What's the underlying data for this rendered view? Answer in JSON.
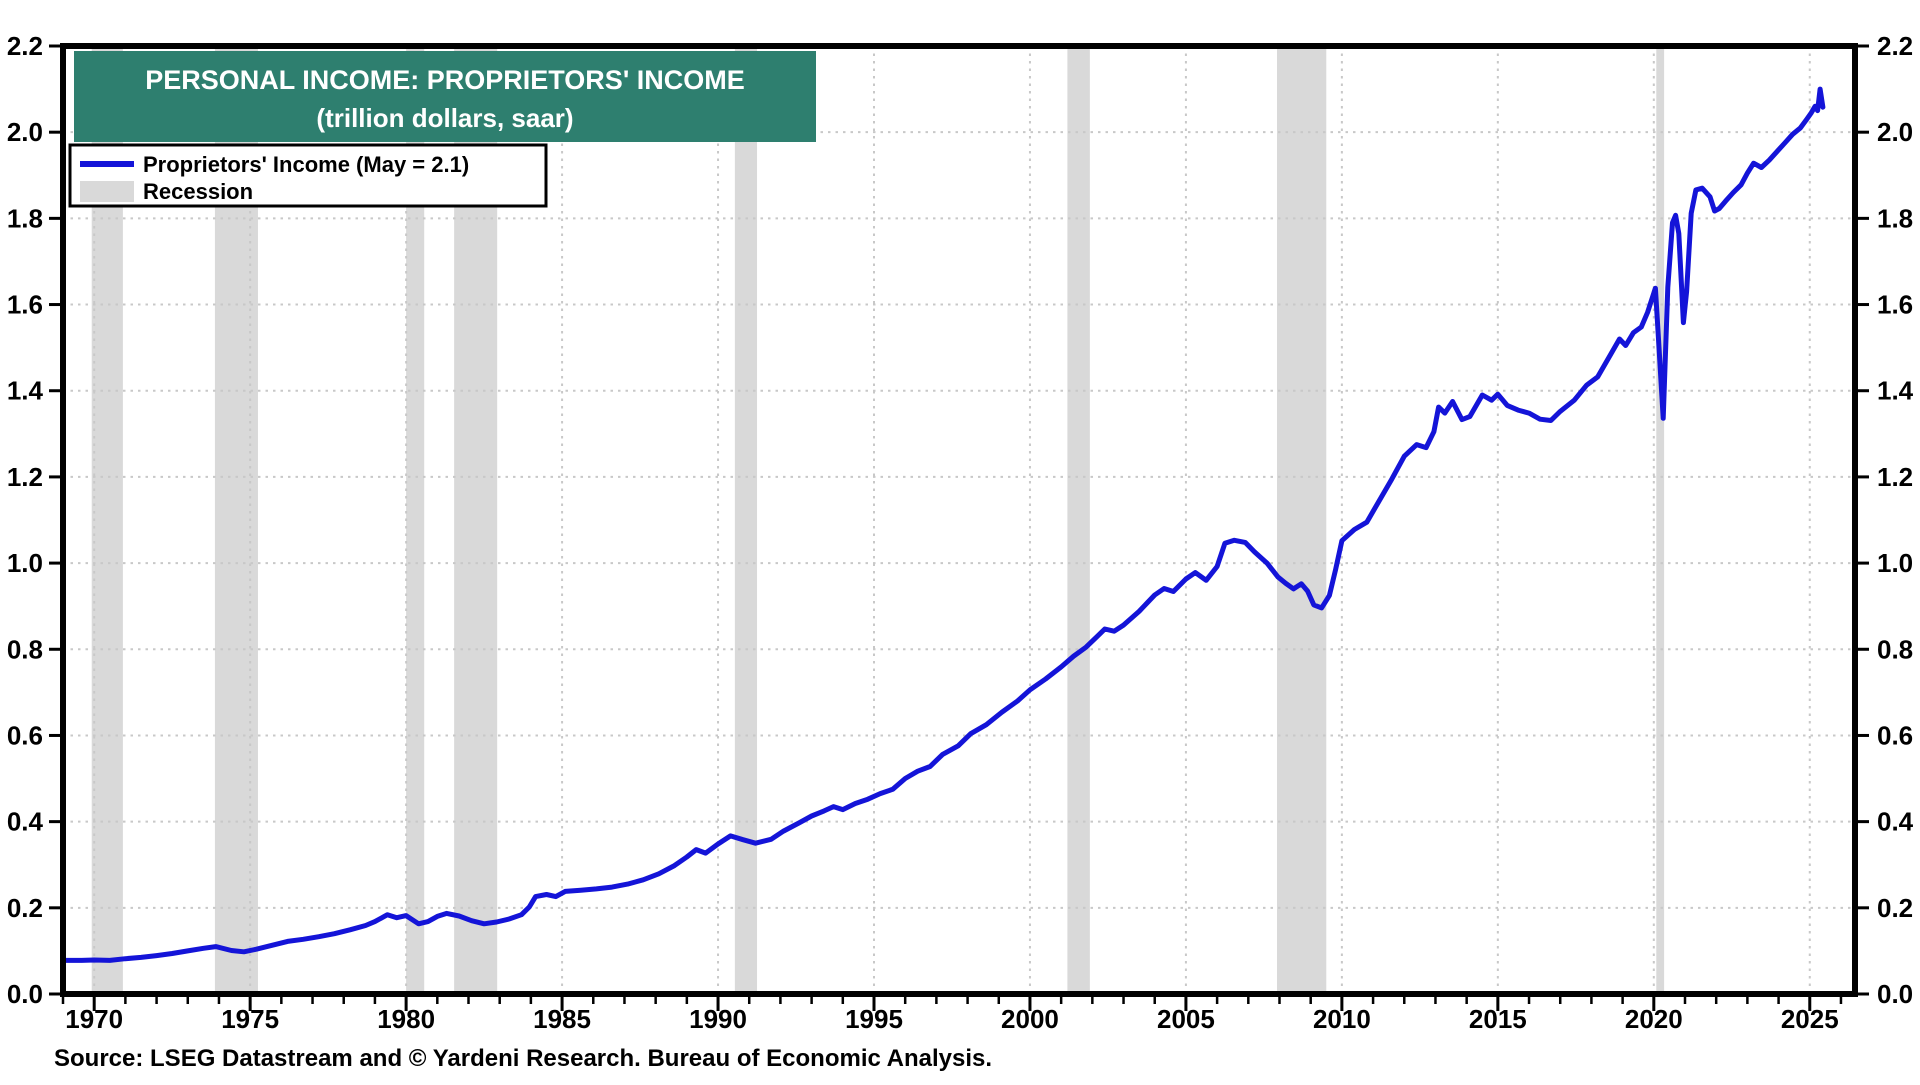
{
  "title": {
    "line1": "PERSONAL INCOME: PROPRIETORS' INCOME",
    "line2": "(trillion dollars, saar)"
  },
  "legend": {
    "series_label": "Proprietors' Income (May = 2.1)",
    "recession_label": "Recession"
  },
  "source_note": "Source: LSEG Datastream and © Yardeni Research. Bureau of Economic Analysis.",
  "colors": {
    "line": "#1414d8",
    "title_bg": "#2e7f6f",
    "title_text": "#ffffff",
    "recession_band": "#d9d9d9",
    "gridline": "#c8c8c8",
    "axis": "#000000",
    "background": "#ffffff"
  },
  "chart_data": {
    "type": "line",
    "title": "PERSONAL INCOME: PROPRIETORS' INCOME",
    "subtitle": "(trillion dollars, saar)",
    "ylabel": "trillion dollars, saar",
    "xlim": [
      1969,
      2026.45
    ],
    "ylim": [
      0,
      2.2
    ],
    "x_ticks_labeled": [
      1970,
      1975,
      1980,
      1985,
      1990,
      1995,
      2000,
      2005,
      2010,
      2015,
      2020,
      2025
    ],
    "x_minor_tick_step": 1,
    "y_ticks": [
      0.0,
      0.2,
      0.4,
      0.6,
      0.8,
      1.0,
      1.2,
      1.4,
      1.6,
      1.8,
      2.0,
      2.2
    ],
    "grid": true,
    "legend_position": "top-left",
    "last_point_label": "May = 2.1",
    "recession_bands": [
      [
        1969.92,
        1970.92
      ],
      [
        1973.87,
        1975.25
      ],
      [
        1980.0,
        1980.58
      ],
      [
        1981.54,
        1982.92
      ],
      [
        1990.54,
        1991.25
      ],
      [
        2001.2,
        2001.92
      ],
      [
        2007.92,
        2009.5
      ],
      [
        2020.08,
        2020.33
      ]
    ],
    "series": [
      {
        "name": "Proprietors' Income (May = 2.1)",
        "color": "#1414d8",
        "points": [
          [
            1969.0,
            0.078
          ],
          [
            1969.6,
            0.078
          ],
          [
            1970.0,
            0.079
          ],
          [
            1970.5,
            0.078
          ],
          [
            1971.0,
            0.082
          ],
          [
            1971.5,
            0.085
          ],
          [
            1972.0,
            0.089
          ],
          [
            1972.5,
            0.094
          ],
          [
            1973.0,
            0.1
          ],
          [
            1973.5,
            0.106
          ],
          [
            1973.9,
            0.11
          ],
          [
            1974.4,
            0.101
          ],
          [
            1974.8,
            0.098
          ],
          [
            1975.2,
            0.104
          ],
          [
            1975.7,
            0.113
          ],
          [
            1976.2,
            0.122
          ],
          [
            1976.7,
            0.127
          ],
          [
            1977.2,
            0.133
          ],
          [
            1977.7,
            0.14
          ],
          [
            1978.2,
            0.149
          ],
          [
            1978.7,
            0.159
          ],
          [
            1979.0,
            0.168
          ],
          [
            1979.4,
            0.184
          ],
          [
            1979.7,
            0.177
          ],
          [
            1980.0,
            0.182
          ],
          [
            1980.4,
            0.163
          ],
          [
            1980.7,
            0.168
          ],
          [
            1981.0,
            0.18
          ],
          [
            1981.3,
            0.187
          ],
          [
            1981.7,
            0.181
          ],
          [
            1982.1,
            0.17
          ],
          [
            1982.5,
            0.163
          ],
          [
            1982.9,
            0.167
          ],
          [
            1983.3,
            0.174
          ],
          [
            1983.7,
            0.184
          ],
          [
            1983.95,
            0.202
          ],
          [
            1984.15,
            0.226
          ],
          [
            1984.5,
            0.231
          ],
          [
            1984.8,
            0.226
          ],
          [
            1985.1,
            0.238
          ],
          [
            1985.6,
            0.241
          ],
          [
            1986.1,
            0.244
          ],
          [
            1986.6,
            0.248
          ],
          [
            1987.1,
            0.255
          ],
          [
            1987.6,
            0.265
          ],
          [
            1988.1,
            0.279
          ],
          [
            1988.6,
            0.298
          ],
          [
            1989.0,
            0.318
          ],
          [
            1989.3,
            0.335
          ],
          [
            1989.6,
            0.327
          ],
          [
            1990.0,
            0.348
          ],
          [
            1990.4,
            0.367
          ],
          [
            1990.8,
            0.358
          ],
          [
            1991.2,
            0.35
          ],
          [
            1991.7,
            0.359
          ],
          [
            1992.1,
            0.378
          ],
          [
            1992.6,
            0.397
          ],
          [
            1993.0,
            0.413
          ],
          [
            1993.4,
            0.425
          ],
          [
            1993.7,
            0.435
          ],
          [
            1994.0,
            0.428
          ],
          [
            1994.4,
            0.442
          ],
          [
            1994.8,
            0.452
          ],
          [
            1995.2,
            0.465
          ],
          [
            1995.6,
            0.475
          ],
          [
            1996.0,
            0.5
          ],
          [
            1996.4,
            0.517
          ],
          [
            1996.8,
            0.528
          ],
          [
            1997.2,
            0.556
          ],
          [
            1997.7,
            0.576
          ],
          [
            1998.1,
            0.604
          ],
          [
            1998.6,
            0.625
          ],
          [
            1999.1,
            0.654
          ],
          [
            1999.6,
            0.68
          ],
          [
            2000.0,
            0.706
          ],
          [
            2000.5,
            0.731
          ],
          [
            2001.0,
            0.759
          ],
          [
            2001.4,
            0.784
          ],
          [
            2001.8,
            0.805
          ],
          [
            2002.1,
            0.826
          ],
          [
            2002.4,
            0.847
          ],
          [
            2002.7,
            0.842
          ],
          [
            2003.0,
            0.856
          ],
          [
            2003.5,
            0.888
          ],
          [
            2004.0,
            0.926
          ],
          [
            2004.3,
            0.941
          ],
          [
            2004.6,
            0.934
          ],
          [
            2005.0,
            0.963
          ],
          [
            2005.3,
            0.978
          ],
          [
            2005.65,
            0.96
          ],
          [
            2006.0,
            0.992
          ],
          [
            2006.25,
            1.046
          ],
          [
            2006.55,
            1.053
          ],
          [
            2006.9,
            1.048
          ],
          [
            2007.2,
            1.026
          ],
          [
            2007.6,
            1.0
          ],
          [
            2007.95,
            0.968
          ],
          [
            2008.2,
            0.953
          ],
          [
            2008.45,
            0.94
          ],
          [
            2008.7,
            0.952
          ],
          [
            2008.9,
            0.935
          ],
          [
            2009.1,
            0.903
          ],
          [
            2009.35,
            0.896
          ],
          [
            2009.6,
            0.925
          ],
          [
            2009.8,
            0.985
          ],
          [
            2010.0,
            1.052
          ],
          [
            2010.4,
            1.078
          ],
          [
            2010.8,
            1.095
          ],
          [
            2011.2,
            1.145
          ],
          [
            2011.6,
            1.195
          ],
          [
            2012.0,
            1.248
          ],
          [
            2012.4,
            1.275
          ],
          [
            2012.7,
            1.268
          ],
          [
            2012.95,
            1.305
          ],
          [
            2013.1,
            1.362
          ],
          [
            2013.3,
            1.348
          ],
          [
            2013.55,
            1.375
          ],
          [
            2013.85,
            1.333
          ],
          [
            2014.1,
            1.34
          ],
          [
            2014.5,
            1.39
          ],
          [
            2014.8,
            1.378
          ],
          [
            2015.0,
            1.392
          ],
          [
            2015.3,
            1.366
          ],
          [
            2015.65,
            1.355
          ],
          [
            2016.0,
            1.348
          ],
          [
            2016.35,
            1.334
          ],
          [
            2016.7,
            1.331
          ],
          [
            2017.0,
            1.352
          ],
          [
            2017.45,
            1.378
          ],
          [
            2017.85,
            1.413
          ],
          [
            2018.2,
            1.432
          ],
          [
            2018.6,
            1.482
          ],
          [
            2018.9,
            1.52
          ],
          [
            2019.1,
            1.505
          ],
          [
            2019.35,
            1.535
          ],
          [
            2019.6,
            1.548
          ],
          [
            2019.8,
            1.582
          ],
          [
            2020.05,
            1.638
          ],
          [
            2020.15,
            1.52
          ],
          [
            2020.3,
            1.336
          ],
          [
            2020.45,
            1.64
          ],
          [
            2020.6,
            1.79
          ],
          [
            2020.7,
            1.807
          ],
          [
            2020.8,
            1.765
          ],
          [
            2020.95,
            1.558
          ],
          [
            2021.05,
            1.63
          ],
          [
            2021.2,
            1.812
          ],
          [
            2021.35,
            1.866
          ],
          [
            2021.55,
            1.87
          ],
          [
            2021.8,
            1.85
          ],
          [
            2021.95,
            1.817
          ],
          [
            2022.1,
            1.823
          ],
          [
            2022.3,
            1.84
          ],
          [
            2022.55,
            1.86
          ],
          [
            2022.8,
            1.878
          ],
          [
            2023.0,
            1.905
          ],
          [
            2023.2,
            1.928
          ],
          [
            2023.45,
            1.918
          ],
          [
            2023.7,
            1.935
          ],
          [
            2023.95,
            1.955
          ],
          [
            2024.2,
            1.975
          ],
          [
            2024.45,
            1.995
          ],
          [
            2024.7,
            2.01
          ],
          [
            2024.9,
            2.03
          ],
          [
            2025.05,
            2.045
          ],
          [
            2025.17,
            2.06
          ],
          [
            2025.25,
            2.05
          ],
          [
            2025.33,
            2.1
          ],
          [
            2025.42,
            2.058
          ]
        ]
      }
    ]
  }
}
